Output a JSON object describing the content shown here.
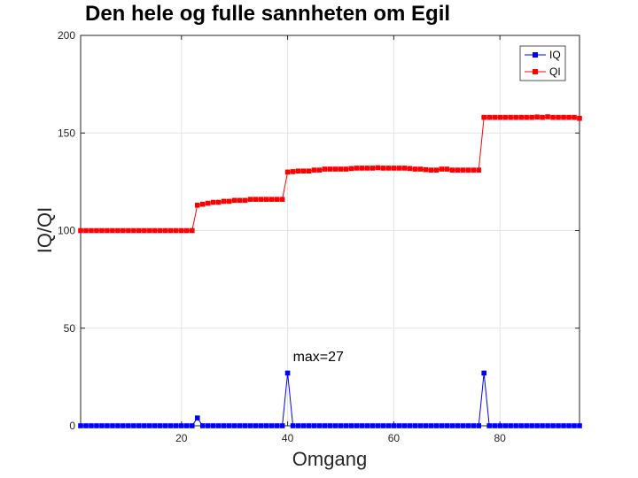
{
  "chart_data": {
    "type": "line",
    "title": "Den hele og fulle sannheten om Egil",
    "xlabel": "Omgang",
    "ylabel": "IQ/QI",
    "xlim": [
      1,
      95
    ],
    "ylim": [
      0,
      200
    ],
    "xticks": [
      20,
      40,
      60,
      80
    ],
    "yticks": [
      0,
      50,
      100,
      150,
      200
    ],
    "grid": true,
    "legend_position": "top-right",
    "annotation": {
      "text": "max=27",
      "x": 41,
      "y": 33
    },
    "series": [
      {
        "name": "IQ",
        "color": "#0000ff",
        "marker": "square",
        "x": [
          1,
          2,
          3,
          4,
          5,
          6,
          7,
          8,
          9,
          10,
          11,
          12,
          13,
          14,
          15,
          16,
          17,
          18,
          19,
          20,
          21,
          22,
          23,
          24,
          25,
          26,
          27,
          28,
          29,
          30,
          31,
          32,
          33,
          34,
          35,
          36,
          37,
          38,
          39,
          40,
          41,
          42,
          43,
          44,
          45,
          46,
          47,
          48,
          49,
          50,
          51,
          52,
          53,
          54,
          55,
          56,
          57,
          58,
          59,
          60,
          61,
          62,
          63,
          64,
          65,
          66,
          67,
          68,
          69,
          70,
          71,
          72,
          73,
          74,
          75,
          76,
          77,
          78,
          79,
          80,
          81,
          82,
          83,
          84,
          85,
          86,
          87,
          88,
          89,
          90,
          91,
          92,
          93,
          94,
          95
        ],
        "y": [
          0,
          0,
          0,
          0,
          0,
          0,
          0,
          0,
          0,
          0,
          0,
          0,
          0,
          0,
          0,
          0,
          0,
          0,
          0,
          0,
          0,
          0,
          4,
          0,
          0,
          0,
          0,
          0,
          0,
          0,
          0,
          0,
          0,
          0,
          0,
          0,
          0,
          0,
          0,
          27,
          0,
          0,
          0,
          0,
          0,
          0,
          0,
          0,
          0,
          0,
          0,
          0,
          0,
          0,
          0,
          0,
          0,
          0,
          0,
          0,
          0,
          0,
          0,
          0,
          0,
          0,
          0,
          0,
          0,
          0,
          0,
          0,
          0,
          0,
          0,
          0,
          27,
          0,
          0,
          0,
          0,
          0,
          0,
          0,
          0,
          0,
          0,
          0,
          0,
          0,
          0,
          0,
          0,
          0,
          0
        ]
      },
      {
        "name": "QI",
        "color": "#ff0000",
        "marker": "square",
        "x": [
          1,
          2,
          3,
          4,
          5,
          6,
          7,
          8,
          9,
          10,
          11,
          12,
          13,
          14,
          15,
          16,
          17,
          18,
          19,
          20,
          21,
          22,
          23,
          24,
          25,
          26,
          27,
          28,
          29,
          30,
          31,
          32,
          33,
          34,
          35,
          36,
          37,
          38,
          39,
          40,
          41,
          42,
          43,
          44,
          45,
          46,
          47,
          48,
          49,
          50,
          51,
          52,
          53,
          54,
          55,
          56,
          57,
          58,
          59,
          60,
          61,
          62,
          63,
          64,
          65,
          66,
          67,
          68,
          69,
          70,
          71,
          72,
          73,
          74,
          75,
          76,
          77,
          78,
          79,
          80,
          81,
          82,
          83,
          84,
          85,
          86,
          87,
          88,
          89,
          90,
          91,
          92,
          93,
          94,
          95
        ],
        "y": [
          100,
          100,
          100,
          100,
          100,
          100,
          100,
          100,
          100,
          100,
          100,
          100,
          100,
          100,
          100,
          100,
          100,
          100,
          100,
          100,
          100,
          100,
          113,
          113.5,
          114,
          114.5,
          114.5,
          115,
          115,
          115.5,
          115.5,
          115.5,
          116,
          116,
          116,
          116,
          116,
          116,
          116,
          130,
          130.2,
          130.5,
          130.5,
          130.5,
          131,
          131,
          131.5,
          131.5,
          131.5,
          131.5,
          131.5,
          131.8,
          132,
          132,
          132,
          132,
          132.2,
          132,
          132,
          132,
          132,
          132,
          131.8,
          131.5,
          131.5,
          131.2,
          131,
          131,
          131.5,
          131.5,
          131,
          131,
          131,
          131,
          131,
          131,
          158,
          158,
          158,
          158,
          158,
          158,
          158,
          158,
          158,
          158,
          158.2,
          158,
          158.3,
          158,
          158,
          158,
          158,
          158,
          157.5
        ]
      }
    ]
  }
}
